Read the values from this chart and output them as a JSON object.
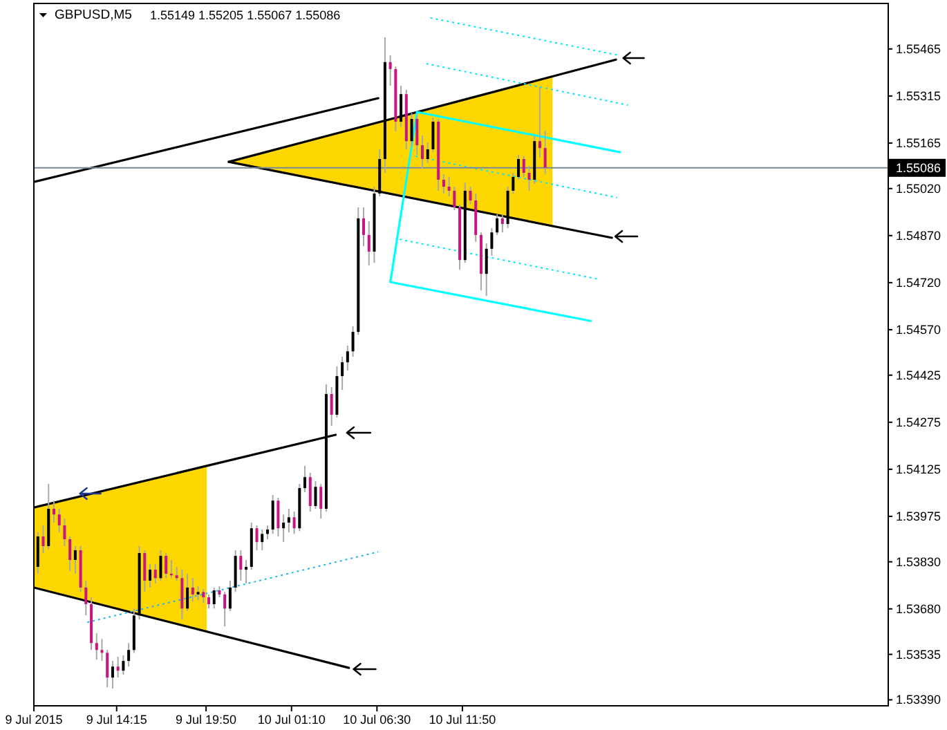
{
  "chart_data": {
    "type": "candlestick",
    "title": "GBPUSD,M5",
    "subtitle": "1.55149 1.55205 1.55067 1.55086",
    "x": [
      "2015-07-09T09:20",
      "2015-07-09T09:40",
      "2015-07-09T10:00",
      "2015-07-09T10:20",
      "2015-07-09T10:40",
      "2015-07-09T11:00",
      "2015-07-09T11:20",
      "2015-07-09T11:40",
      "2015-07-09T12:00",
      "2015-07-09T12:20",
      "2015-07-09T12:40",
      "2015-07-09T13:00",
      "2015-07-09T13:20",
      "2015-07-09T13:40",
      "2015-07-09T14:00",
      "2015-07-09T14:20",
      "2015-07-09T14:40",
      "2015-07-09T15:00",
      "2015-07-09T15:20",
      "2015-07-09T15:40",
      "2015-07-09T16:00",
      "2015-07-09T16:20",
      "2015-07-09T16:40",
      "2015-07-09T17:00",
      "2015-07-09T17:20",
      "2015-07-09T17:40",
      "2015-07-09T18:00",
      "2015-07-09T18:20",
      "2015-07-09T18:40",
      "2015-07-09T19:00",
      "2015-07-09T19:20",
      "2015-07-09T19:40",
      "2015-07-09T20:00",
      "2015-07-09T20:20",
      "2015-07-09T20:40",
      "2015-07-09T21:00",
      "2015-07-09T21:20",
      "2015-07-09T21:40",
      "2015-07-09T22:00",
      "2015-07-09T22:20",
      "2015-07-09T22:40",
      "2015-07-09T23:00",
      "2015-07-09T23:20",
      "2015-07-09T23:40",
      "2015-07-10T00:00",
      "2015-07-10T00:20",
      "2015-07-10T00:40",
      "2015-07-10T01:00",
      "2015-07-10T01:20",
      "2015-07-10T01:40",
      "2015-07-10T02:00",
      "2015-07-10T02:20",
      "2015-07-10T02:40",
      "2015-07-10T03:00",
      "2015-07-10T03:20",
      "2015-07-10T03:40",
      "2015-07-10T04:00",
      "2015-07-10T04:20",
      "2015-07-10T04:40",
      "2015-07-10T05:00",
      "2015-07-10T05:20",
      "2015-07-10T05:40",
      "2015-07-10T06:00",
      "2015-07-10T06:20",
      "2015-07-10T06:40",
      "2015-07-10T07:00",
      "2015-07-10T07:20",
      "2015-07-10T07:40",
      "2015-07-10T08:00",
      "2015-07-10T08:20",
      "2015-07-10T08:40",
      "2015-07-10T09:00",
      "2015-07-10T09:20",
      "2015-07-10T09:40",
      "2015-07-10T10:00",
      "2015-07-10T10:20",
      "2015-07-10T10:40",
      "2015-07-10T11:00",
      "2015-07-10T11:20",
      "2015-07-10T11:40",
      "2015-07-10T12:00",
      "2015-07-10T12:20",
      "2015-07-10T12:40",
      "2015-07-10T13:00",
      "2015-07-10T13:20",
      "2015-07-10T13:40",
      "2015-07-10T14:00",
      "2015-07-10T14:20",
      "2015-07-10T14:40",
      "2015-07-10T15:00",
      "2015-07-10T15:20",
      "2015-07-10T15:40",
      "2015-07-10T16:00",
      "2015-07-10T16:20",
      "2015-07-10T16:40",
      "2015-07-10T17:00"
    ],
    "ohlc": [
      [
        1.53814,
        1.53924,
        1.53792,
        1.53911
      ],
      [
        1.53911,
        1.53946,
        1.53858,
        1.5388
      ],
      [
        1.5388,
        1.54078,
        1.53871,
        1.53999
      ],
      [
        1.53999,
        1.54025,
        1.53955,
        1.53981
      ],
      [
        1.53981,
        1.53999,
        1.53924,
        1.53946
      ],
      [
        1.53946,
        1.53968,
        1.5388,
        1.53902
      ],
      [
        1.53902,
        1.53911,
        1.538,
        1.53836
      ],
      [
        1.53836,
        1.5388,
        1.53792,
        1.53867
      ],
      [
        1.53867,
        1.5388,
        1.53734,
        1.53748
      ],
      [
        1.53748,
        1.5377,
        1.53659,
        1.53695
      ],
      [
        1.53695,
        1.53717,
        1.53549,
        1.53571
      ],
      [
        1.53571,
        1.53602,
        1.53518,
        1.53549
      ],
      [
        1.53549,
        1.53584,
        1.53514,
        1.5354
      ],
      [
        1.5354,
        1.53549,
        1.5343,
        1.53461
      ],
      [
        1.53461,
        1.53514,
        1.53426,
        1.53496
      ],
      [
        1.53496,
        1.53527,
        1.53461,
        1.53483
      ],
      [
        1.53483,
        1.53532,
        1.5347,
        1.53514
      ],
      [
        1.53514,
        1.53571,
        1.53496,
        1.53549
      ],
      [
        1.53549,
        1.53681,
        1.5354,
        1.53659
      ],
      [
        1.53659,
        1.5388,
        1.53646,
        1.53858
      ],
      [
        1.53858,
        1.53867,
        1.53734,
        1.5377
      ],
      [
        1.5377,
        1.53823,
        1.53748,
        1.53805
      ],
      [
        1.53805,
        1.53823,
        1.53761,
        1.53778
      ],
      [
        1.53778,
        1.53867,
        1.5377,
        1.53849
      ],
      [
        1.53849,
        1.53858,
        1.53778,
        1.53792
      ],
      [
        1.53792,
        1.53836,
        1.53778,
        1.53787
      ],
      [
        1.53787,
        1.53814,
        1.5377,
        1.53778
      ],
      [
        1.53778,
        1.53805,
        1.53646,
        1.53681
      ],
      [
        1.53681,
        1.53792,
        1.53673,
        1.53748
      ],
      [
        1.53748,
        1.53778,
        1.53703,
        1.53726
      ],
      [
        1.53726,
        1.53752,
        1.53708,
        1.53734
      ],
      [
        1.53734,
        1.53743,
        1.53699,
        1.53717
      ],
      [
        1.53717,
        1.53726,
        1.53681,
        1.53695
      ],
      [
        1.53695,
        1.53748,
        1.53681,
        1.53739
      ],
      [
        1.53739,
        1.53752,
        1.53717,
        1.53726
      ],
      [
        1.53726,
        1.53734,
        1.53624,
        1.53681
      ],
      [
        1.53681,
        1.5377,
        1.53673,
        1.53748
      ],
      [
        1.53748,
        1.53867,
        1.53734,
        1.53849
      ],
      [
        1.53849,
        1.53867,
        1.5377,
        1.53805
      ],
      [
        1.53805,
        1.53836,
        1.53761,
        1.53814
      ],
      [
        1.53814,
        1.53955,
        1.53805,
        1.53937
      ],
      [
        1.53937,
        1.53946,
        1.53867,
        1.53893
      ],
      [
        1.53893,
        1.53933,
        1.53867,
        1.53919
      ],
      [
        1.53919,
        1.53946,
        1.53902,
        1.53933
      ],
      [
        1.53933,
        1.54043,
        1.53919,
        1.54025
      ],
      [
        1.54025,
        1.54034,
        1.53911,
        1.53937
      ],
      [
        1.53937,
        1.53981,
        1.53893,
        1.53955
      ],
      [
        1.53955,
        1.53999,
        1.53924,
        1.53972
      ],
      [
        1.53972,
        1.5399,
        1.53919,
        1.53937
      ],
      [
        1.53937,
        1.54078,
        1.53928,
        1.54065
      ],
      [
        1.54065,
        1.54136,
        1.54052,
        1.541
      ],
      [
        1.541,
        1.54114,
        1.5399,
        1.54008
      ],
      [
        1.54008,
        1.54087,
        1.53999,
        1.54069
      ],
      [
        1.54069,
        1.54078,
        1.53968,
        1.53999
      ],
      [
        1.53999,
        1.54396,
        1.5399,
        1.54365
      ],
      [
        1.54365,
        1.54387,
        1.54263,
        1.54299
      ],
      [
        1.54299,
        1.54453,
        1.5429,
        1.54422
      ],
      [
        1.54422,
        1.54484,
        1.54378,
        1.54466
      ],
      [
        1.54466,
        1.54519,
        1.5444,
        1.54501
      ],
      [
        1.54501,
        1.54581,
        1.54484,
        1.54563
      ],
      [
        1.54563,
        1.5496,
        1.54554,
        1.54925
      ],
      [
        1.54925,
        1.5496,
        1.54836,
        1.54872
      ],
      [
        1.54872,
        1.54916,
        1.54775,
        1.54819
      ],
      [
        1.54819,
        1.55026,
        1.54783,
        1.55004
      ],
      [
        1.55004,
        1.55145,
        1.54995,
        1.55114
      ],
      [
        1.55114,
        1.55502,
        1.5507,
        1.55423
      ],
      [
        1.55423,
        1.55445,
        1.55348,
        1.55401
      ],
      [
        1.55401,
        1.55409,
        1.55202,
        1.55233
      ],
      [
        1.55233,
        1.55348,
        1.55216,
        1.55321
      ],
      [
        1.55321,
        1.55335,
        1.55145,
        1.55171
      ],
      [
        1.55171,
        1.5526,
        1.55154,
        1.55242
      ],
      [
        1.55242,
        1.55251,
        1.55127,
        1.55158
      ],
      [
        1.55158,
        1.55189,
        1.55083,
        1.55114
      ],
      [
        1.55114,
        1.55167,
        1.55101,
        1.55145
      ],
      [
        1.55145,
        1.55246,
        1.55136,
        1.55233
      ],
      [
        1.55233,
        1.55242,
        1.55013,
        1.55048
      ],
      [
        1.55048,
        1.55066,
        1.55004,
        1.55026
      ],
      [
        1.55026,
        1.55057,
        1.54995,
        1.55013
      ],
      [
        1.55013,
        1.55026,
        1.54951,
        1.5496
      ],
      [
        1.5496,
        1.54969,
        1.54761,
        1.54792
      ],
      [
        1.54792,
        1.55039,
        1.54783,
        1.55013
      ],
      [
        1.55013,
        1.55026,
        1.54969,
        1.54982
      ],
      [
        1.54982,
        1.55004,
        1.5485,
        1.54872
      ],
      [
        1.54872,
        1.5488,
        1.54695,
        1.54748
      ],
      [
        1.54748,
        1.54845,
        1.54678,
        1.54828
      ],
      [
        1.54828,
        1.54894,
        1.54806,
        1.5488
      ],
      [
        1.5488,
        1.54938,
        1.54872,
        1.54925
      ],
      [
        1.54925,
        1.54938,
        1.5488,
        1.54907
      ],
      [
        1.54907,
        1.55026,
        1.54894,
        1.55013
      ],
      [
        1.55013,
        1.5507,
        1.55004,
        1.55057
      ],
      [
        1.55057,
        1.55127,
        1.55048,
        1.55114
      ],
      [
        1.55114,
        1.55123,
        1.55057,
        1.5507
      ],
      [
        1.5507,
        1.55092,
        1.55013,
        1.55048
      ],
      [
        1.55048,
        1.55189,
        1.55035,
        1.55171
      ],
      [
        1.55171,
        1.55343,
        1.55118,
        1.55149
      ],
      [
        1.55149,
        1.55205,
        1.55067,
        1.55086
      ]
    ],
    "color": "#a8a8a8",
    "colors": [
      "#000000",
      "#c71585",
      "#000000",
      "#c71585",
      "#c71585",
      "#c71585",
      "#c71585",
      "#000000",
      "#c71585",
      "#c71585",
      "#c71585",
      "#c71585",
      "#c71585",
      "#c71585",
      "#000000",
      "#c71585",
      "#000000",
      "#000000",
      "#000000",
      "#000000",
      "#c71585",
      "#000000",
      "#c71585",
      "#000000",
      "#c71585",
      "#c71585",
      "#c71585",
      "#c71585",
      "#000000",
      "#c71585",
      "#000000",
      "#c71585",
      "#c71585",
      "#000000",
      "#c71585",
      "#c71585",
      "#000000",
      "#000000",
      "#c71585",
      "#000000",
      "#000000",
      "#c71585",
      "#000000",
      "#000000",
      "#000000",
      "#c71585",
      "#000000",
      "#000000",
      "#c71585",
      "#000000",
      "#000000",
      "#c71585",
      "#000000",
      "#c71585",
      "#000000",
      "#c71585",
      "#000000",
      "#000000",
      "#000000",
      "#000000",
      "#000000",
      "#c71585",
      "#c71585",
      "#000000",
      "#000000",
      "#000000",
      "#c71585",
      "#c71585",
      "#000000",
      "#c71585",
      "#000000",
      "#c71585",
      "#c71585",
      "#000000",
      "#000000",
      "#c71585",
      "#c71585",
      "#c71585",
      "#c71585",
      "#c71585",
      "#000000",
      "#c71585",
      "#c71585",
      "#c71585",
      "#000000",
      "#000000",
      "#000000",
      "#c71585",
      "#000000",
      "#000000",
      "#000000",
      "#c71585",
      "#c71585",
      "#000000",
      "#c71585",
      "#c71585"
    ],
    "series": [
      {
        "type": "line",
        "color": "#000000",
        "x": [
          "2015-07-09T09:05",
          "2015-07-10T06:35"
        ],
        "values": [
          1.55041,
          1.55308
        ]
      },
      {
        "type": "line",
        "color": "#000000",
        "x": [
          "2015-07-09T09:05",
          "2015-07-10T03:55"
        ],
        "values": [
          1.54003,
          1.54235
        ]
      },
      {
        "type": "line",
        "color": "#000000",
        "x": [
          "2015-07-09T09:05",
          "2015-07-10T04:45"
        ],
        "values": [
          1.53748,
          1.53492
        ]
      },
      {
        "type": "line",
        "color": "#000000",
        "x": [
          "2015-07-09T21:15",
          "2015-07-10T21:25"
        ],
        "values": [
          1.55105,
          1.55431
        ]
      },
      {
        "type": "line",
        "color": "#000000",
        "x": [
          "2015-07-09T21:15",
          "2015-07-10T21:10"
        ],
        "values": [
          1.55105,
          1.54863
        ]
      },
      {
        "type": "line",
        "color": "#1eb4f0",
        "line_style": "dotted",
        "x": [
          "2015-07-09T12:25",
          "2015-07-10T06:35"
        ],
        "values": [
          1.53637,
          1.53862
        ]
      },
      {
        "type": "line",
        "color": "#00ffff",
        "x": [
          "2015-07-10T21:40",
          "2015-07-10T09:00",
          "2015-07-10T07:20",
          "2015-07-10T19:50"
        ],
        "values": [
          1.55136,
          1.55264,
          1.54722,
          1.54598
        ]
      },
      {
        "type": "line",
        "color": "#00e5ff",
        "line_style": "dotted",
        "x": [
          "2015-07-10T09:50",
          "2015-07-10T21:35"
        ],
        "values": [
          1.55564,
          1.55445
        ]
      },
      {
        "type": "line",
        "color": "#00e5ff",
        "line_style": "dotted",
        "x": [
          "2015-07-10T09:35",
          "2015-07-10T22:10"
        ],
        "values": [
          1.55418,
          1.55286
        ]
      },
      {
        "type": "line",
        "color": "#00e5ff",
        "line_style": "dotted",
        "x": [
          "2015-07-10T08:55",
          "2015-07-10T21:30"
        ],
        "values": [
          1.55123,
          1.54991
        ]
      },
      {
        "type": "line",
        "color": "#00e5ff",
        "line_style": "dotted",
        "x": [
          "2015-07-10T07:55",
          "2015-07-10T20:20"
        ],
        "values": [
          1.54858,
          1.54731
        ]
      }
    ],
    "xlim": [
      "2015-07-09T09:05",
      "2015-07-11T14:25"
    ],
    "xticks": [
      {
        "value": "2015-07-09T09:05",
        "label": "9 Jul 2015"
      },
      {
        "value": "2015-07-09T14:15",
        "label": "9 Jul 14:15"
      },
      {
        "value": "2015-07-09T19:50",
        "label": "9 Jul 19:50"
      },
      {
        "value": "2015-07-10T01:10",
        "label": "10 Jul 01:10"
      },
      {
        "value": "2015-07-10T06:30",
        "label": "10 Jul 06:30"
      },
      {
        "value": "2015-07-10T11:50",
        "label": "10 Jul 11:50"
      }
    ],
    "ylim": [
      1.53371,
      1.5561
    ],
    "yticks": [
      1.55465,
      1.55315,
      1.55165,
      {
        "value": 1.5502,
        "label": "1.55020"
      },
      {
        "value": 1.5487,
        "label": "1.54870"
      },
      {
        "value": 1.5472,
        "label": "1.54720"
      },
      {
        "value": 1.5457,
        "label": "1.54570"
      },
      1.54425,
      1.54275,
      1.54125,
      1.53975,
      {
        "value": 1.5383,
        "label": "1.53830"
      },
      {
        "value": 1.5368,
        "label": "1.53680"
      },
      1.53535,
      {
        "value": 1.5339,
        "label": "1.53390"
      }
    ],
    "ref_lines": [
      {
        "axis": "y",
        "value": 1.55086,
        "label": "1.55086",
        "color": "#778899"
      }
    ]
  }
}
